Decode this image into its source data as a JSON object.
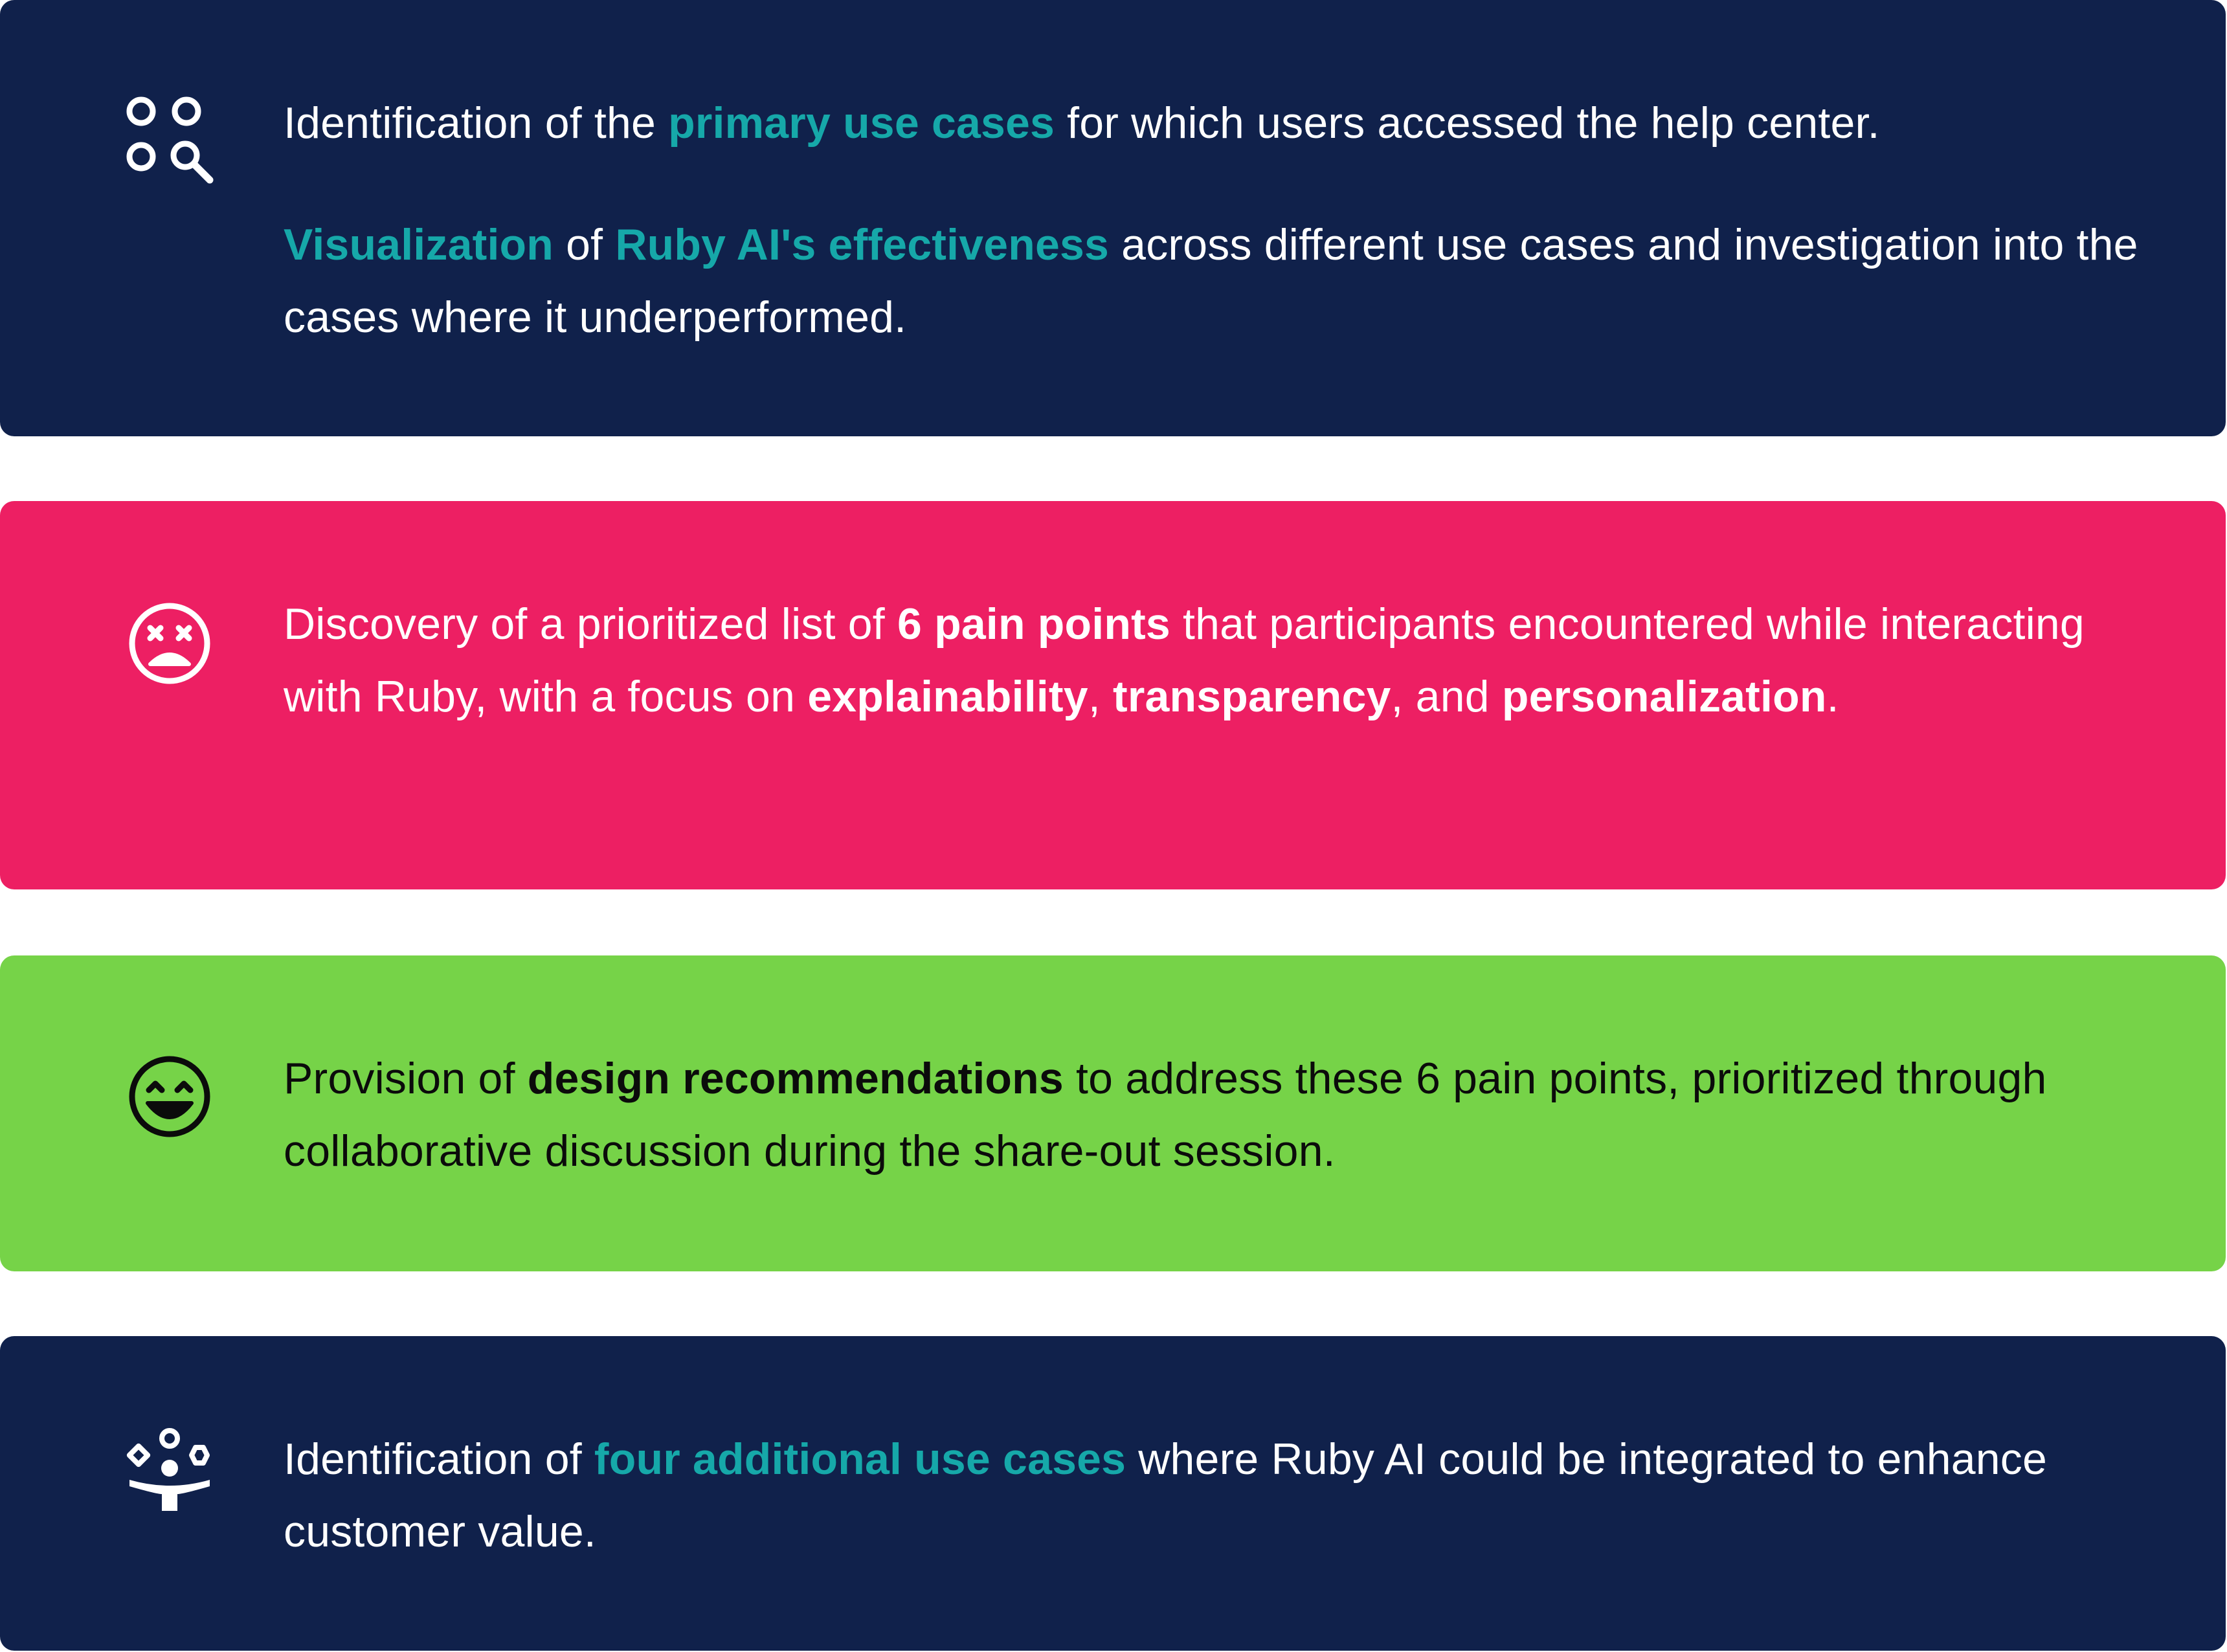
{
  "colors": {
    "navy": "#10214b",
    "pink": "#ed1f63",
    "green": "#76d348",
    "teal_accent": "#16a8a9",
    "white": "#ffffff"
  },
  "cards": [
    {
      "icon": "circles-search-icon",
      "paragraphs": [
        {
          "segments": [
            {
              "text": "Identification of the ",
              "style": "plain"
            },
            {
              "text": "primary use cases",
              "style": "teal"
            },
            {
              "text": " for which users accessed the help center.",
              "style": "plain"
            }
          ]
        },
        {
          "segments": [
            {
              "text": "Visualization",
              "style": "teal"
            },
            {
              "text": " of ",
              "style": "plain"
            },
            {
              "text": "Ruby AI's effectiveness",
              "style": "teal"
            },
            {
              "text": " across different use cases and investigation into the cases where it underperformed.",
              "style": "plain"
            }
          ]
        }
      ]
    },
    {
      "icon": "frustrated-face-icon",
      "paragraphs": [
        {
          "segments": [
            {
              "text": "Discovery of a prioritized list of ",
              "style": "plain"
            },
            {
              "text": "6 pain points",
              "style": "bold"
            },
            {
              "text": " that participants encountered while interacting with Ruby, with a focus on ",
              "style": "plain"
            },
            {
              "text": "explainability",
              "style": "bold"
            },
            {
              "text": ", ",
              "style": "plain"
            },
            {
              "text": "transparency",
              "style": "bold"
            },
            {
              "text": ", and ",
              "style": "plain"
            },
            {
              "text": "personalization",
              "style": "bold"
            },
            {
              "text": ".",
              "style": "plain"
            }
          ]
        }
      ]
    },
    {
      "icon": "happy-face-icon",
      "paragraphs": [
        {
          "segments": [
            {
              "text": "Provision of ",
              "style": "plain"
            },
            {
              "text": "design recommendations",
              "style": "bold"
            },
            {
              "text": " to address these 6 pain points, prioritized through collaborative discussion during the share-out session.",
              "style": "plain"
            }
          ]
        }
      ]
    },
    {
      "icon": "juggling-person-icon",
      "paragraphs": [
        {
          "segments": [
            {
              "text": "Identification of ",
              "style": "plain"
            },
            {
              "text": "four additional use cases",
              "style": "teal"
            },
            {
              "text": " where Ruby AI could be integrated to enhance customer value.",
              "style": "plain"
            }
          ]
        }
      ]
    }
  ]
}
